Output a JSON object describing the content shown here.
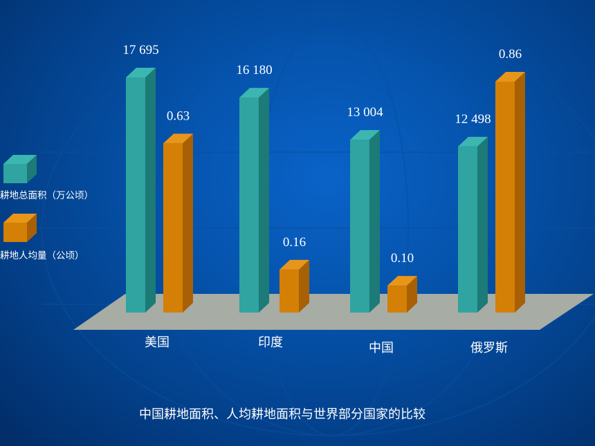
{
  "colors": {
    "background": "#0553ac",
    "floor": "#a7aca5",
    "series_area_front": "#2fa4a0",
    "series_area_side": "#1c7a77",
    "series_area_top": "#3cb6b1",
    "series_percapita_front": "#d47f06",
    "series_percapita_side": "#a86004",
    "series_percapita_top": "#e8961a"
  },
  "chart_data": {
    "type": "bar",
    "title": "中国耕地面积、人均耕地面积与世界部分国家的比较",
    "categories": [
      "美国",
      "印度",
      "中国",
      "俄罗斯"
    ],
    "series": [
      {
        "name": "耕地总面积（万公顷）",
        "values": [
          17695,
          16180,
          13004,
          12498
        ],
        "labels": [
          "17 695",
          "16 180",
          "13 004",
          "12 498"
        ]
      },
      {
        "name": "耕地人均量（公顷）",
        "values": [
          0.63,
          0.16,
          0.1,
          0.86
        ],
        "labels": [
          "0.63",
          "0.16",
          "0.10",
          "0.86"
        ]
      }
    ],
    "legend_position": "left",
    "grid": false,
    "style": "3d-column"
  }
}
